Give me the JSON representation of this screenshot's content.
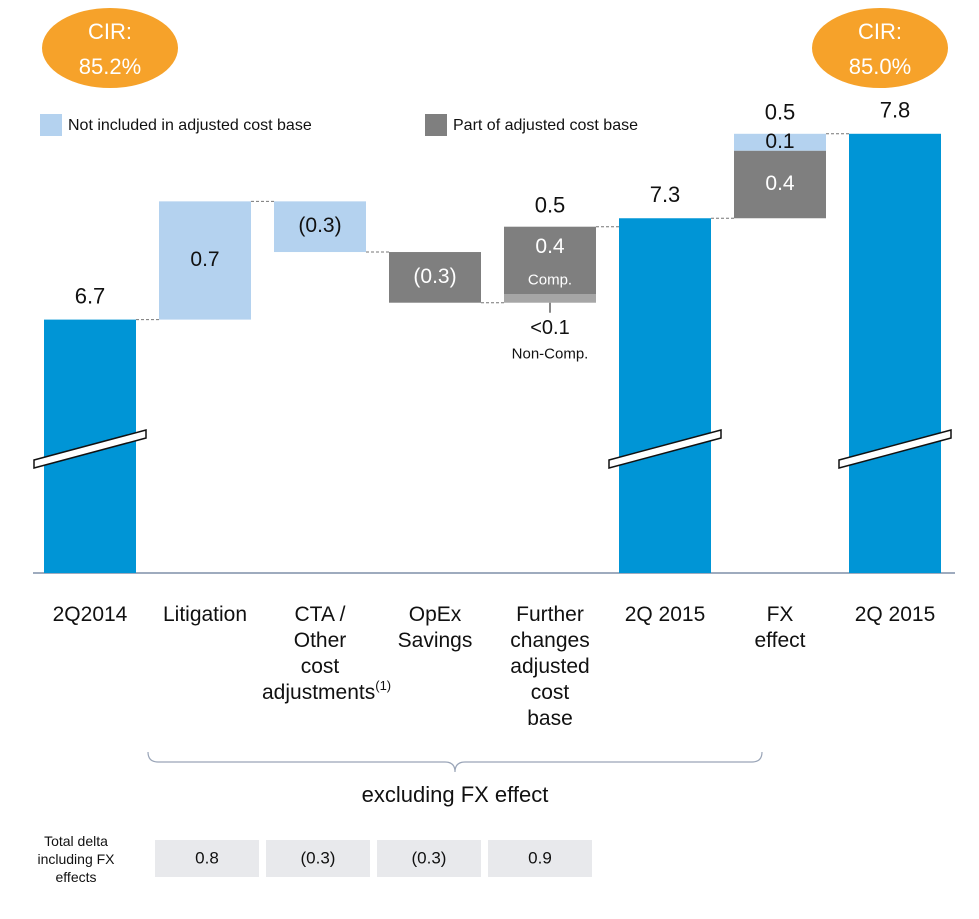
{
  "chart_data": {
    "type": "waterfall",
    "categories": [
      "2Q2014",
      "Litigation",
      "CTA /\nOther\ncost\nadjustments",
      "OpEx\nSavings",
      "Further\nchanges\nadjusted\ncost\nbase",
      "2Q 2015",
      "FX\neffect",
      "2Q 2015"
    ],
    "footnote_marker": "(1)",
    "ylim": [
      5.2,
      8.0
    ],
    "totals": {
      "color": "#0095d6",
      "values": [
        6.7,
        null,
        null,
        null,
        null,
        7.3,
        null,
        7.8
      ]
    },
    "series": [
      {
        "name": "Not included in adjusted cost base",
        "color": "#b4d2ef",
        "in_legend": true,
        "values": [
          null,
          0.7,
          -0.3,
          null,
          null,
          null,
          0.1,
          null
        ],
        "value_labels": [
          null,
          null,
          "(0.3)",
          null,
          null,
          null,
          null,
          null
        ]
      },
      {
        "name": "Part of adjusted cost base",
        "color": "#7f7f7f",
        "in_legend": true,
        "values": [
          null,
          null,
          null,
          -0.3,
          0.4,
          null,
          0.4,
          null
        ],
        "value_labels": [
          null,
          null,
          null,
          "(0.3)",
          null,
          null,
          null,
          null
        ],
        "sublabels": [
          null,
          null,
          null,
          null,
          "Comp.",
          null,
          null,
          null
        ]
      },
      {
        "name": "Non-Comp.",
        "color": "#a6a6a6",
        "in_legend": false,
        "values": [
          null,
          null,
          null,
          null,
          0.05,
          null,
          null,
          null
        ],
        "value_labels": [
          null,
          null,
          null,
          null,
          "<0.1",
          null,
          null,
          null
        ]
      }
    ],
    "delta_totals": [
      null,
      null,
      null,
      null,
      0.5,
      null,
      0.5,
      null
    ],
    "annotations": [
      {
        "label": "CIR:",
        "value": 85.2,
        "value_label": "85.2%",
        "color": "#f6a22a"
      },
      {
        "label": "CIR:",
        "value": 85.0,
        "value_label": "85.0%",
        "color": "#f6a22a"
      }
    ],
    "bracket_label": "excluding FX effect",
    "total_delta": {
      "label": "Total delta\nincluding FX\neffects",
      "values": [
        0.8,
        -0.3,
        -0.3,
        0.9
      ],
      "value_labels": [
        "0.8",
        "(0.3)",
        "(0.3)",
        "0.9"
      ]
    }
  }
}
